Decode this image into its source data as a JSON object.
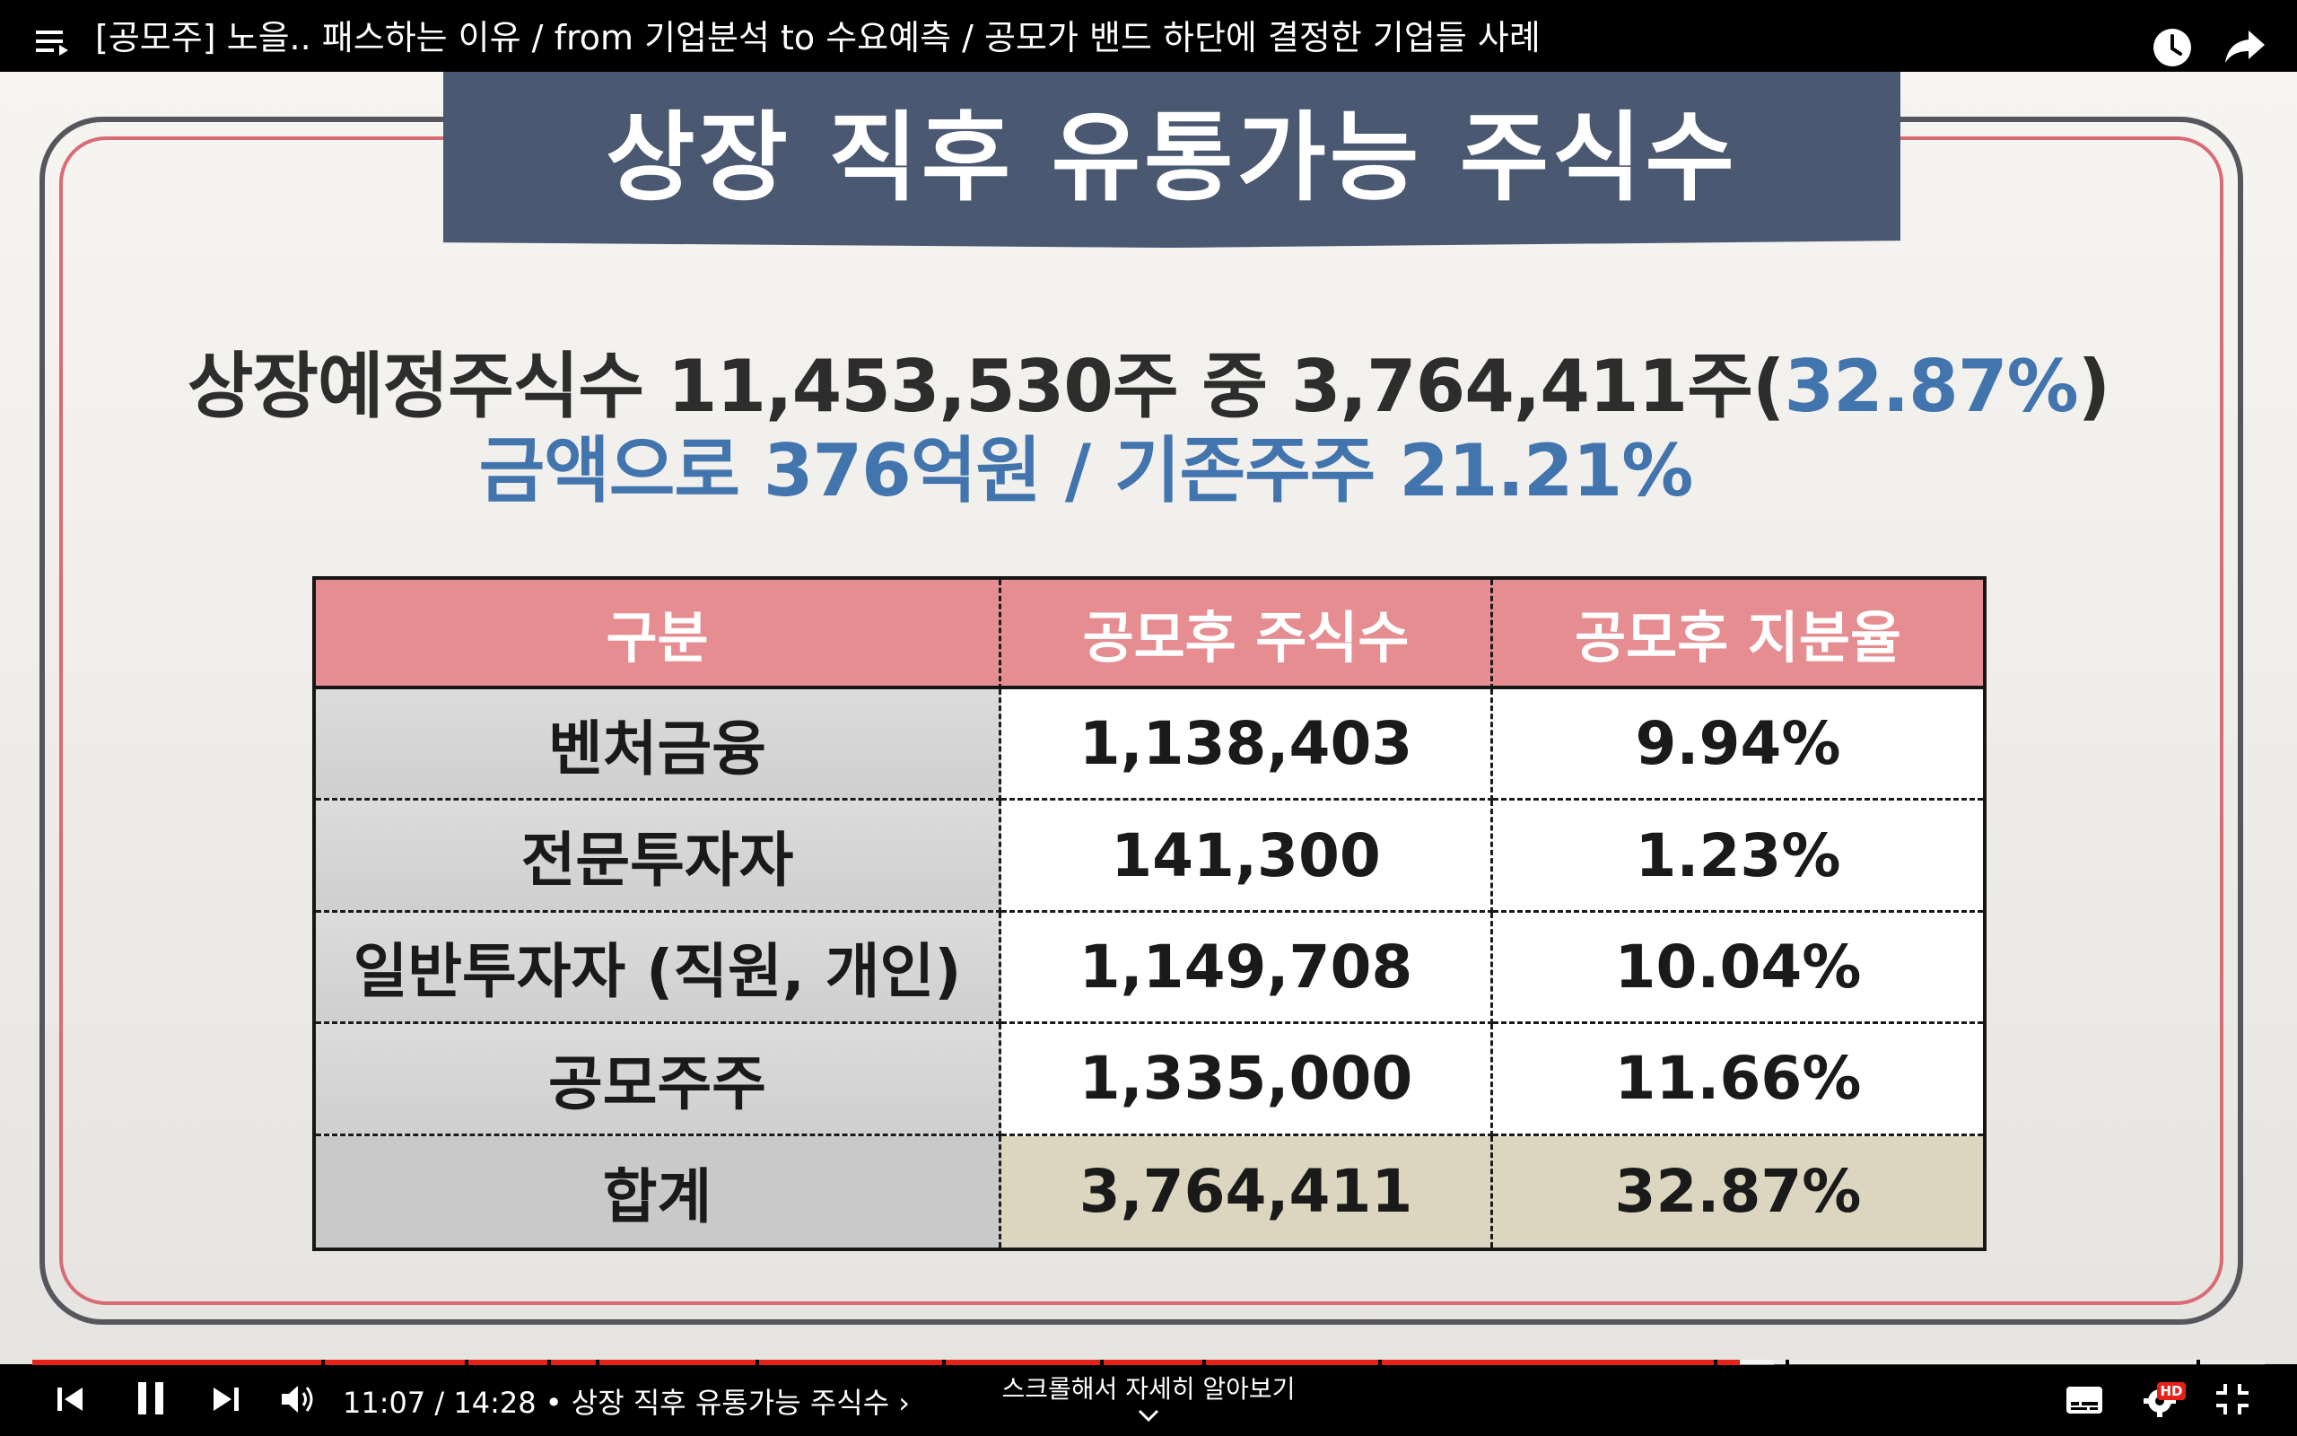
{
  "player": {
    "video_title": "[공모주] 노을.. 패스하는 이유 / from 기업분석 to 수요예측 / 공모가 밴드 하단에 결정한 기업들 사례",
    "current_time": "11:07",
    "duration": "14:28",
    "time_display": "11:07 / 14:28 • 상장 직후 유통가능 주식수 ›",
    "chapter_title": "상장 직후 유통가능 주식수",
    "scroll_hint": "스크롤해서 자세히 알아보기",
    "progress_fraction": 0.765,
    "buffer_fraction": 0.78,
    "hd_badge": "HD",
    "accent_color": "#e62117",
    "icons": [
      "playlist-icon",
      "watch-later-icon",
      "share-icon",
      "previous-icon",
      "pause-icon",
      "next-icon",
      "volume-icon",
      "subtitles-icon",
      "settings-icon",
      "exit-fullscreen-icon",
      "chevron-down-icon"
    ]
  },
  "slide": {
    "banner_title": "상장 직후 유통가능 주식수",
    "summary_line1_prefix": "상장예정주식수 11,453,530주 중 3,764,411주(",
    "summary_line1_highlight": "32.87%",
    "summary_line1_suffix": ")",
    "summary_line2": "금액으로 376억원  / 기존주주 21.21%",
    "colors": {
      "banner": "#4a5872",
      "highlight_blue": "#4274ad",
      "table_header": "#e58d91",
      "frame_red": "#d96b75",
      "total_value_bg": "#dcd6c0"
    },
    "table": {
      "headers": [
        "구분",
        "공모후 주식수",
        "공모후 지분율"
      ],
      "rows": [
        [
          "벤처금융",
          "1,138,403",
          "9.94%"
        ],
        [
          "전문투자자",
          "141,300",
          "1.23%"
        ],
        [
          "일반투자자 (직원, 개인)",
          "1,149,708",
          "10.04%"
        ],
        [
          "공모주주",
          "1,335,000",
          "11.66%"
        ],
        [
          "합계",
          "3,764,411",
          "32.87%"
        ]
      ]
    }
  }
}
